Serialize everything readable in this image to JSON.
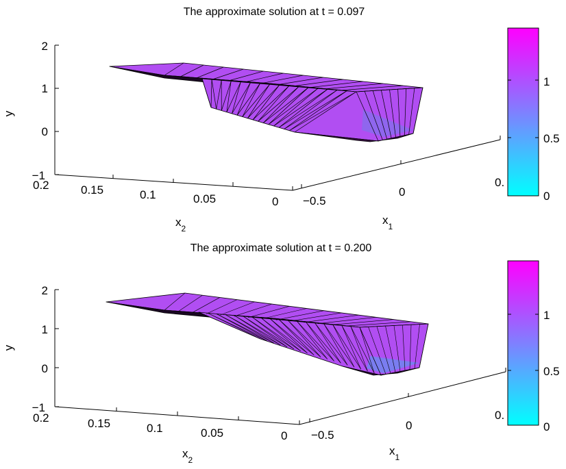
{
  "chart_data": [
    {
      "type": "surface",
      "title": "The approximate solution  at   t = 0.097",
      "zlabel": "y",
      "xlabel": "x",
      "xlabel_sub": "2",
      "ylabel": "x",
      "ylabel_sub": "1",
      "x2_ticks": [
        "0.2",
        "0.15",
        "0.1",
        "0.05",
        "0"
      ],
      "x2_range": [
        0,
        0.2
      ],
      "x1_ticks": [
        "−0.5",
        "0",
        "0."
      ],
      "z_ticks": [
        "−1",
        "0",
        "1",
        "2"
      ],
      "z_range": [
        -1,
        2
      ],
      "colorbar": {
        "ticks": [
          "0",
          "0.5",
          "1"
        ],
        "range": [
          0,
          1.45
        ],
        "colormap": "cool"
      },
      "surface_color": "#b14ef2",
      "front_profile": [
        {
          "x2": 0.2,
          "y": 1.45
        },
        {
          "x2": 0.14,
          "y": 1.35
        },
        {
          "x2": 0.095,
          "y": 1.3
        },
        {
          "x2": 0.094,
          "y": 0.5
        },
        {
          "x2": 0.03,
          "y": 0.5
        },
        {
          "x2": 0.0,
          "y": 0.05
        }
      ]
    },
    {
      "type": "surface",
      "title": "The approximate solution  at   t = 0.200",
      "zlabel": "y",
      "xlabel": "x",
      "xlabel_sub": "2",
      "ylabel": "x",
      "ylabel_sub": "1",
      "x2_ticks": [
        "0.2",
        "0.15",
        "0.1",
        "0.05",
        "0"
      ],
      "x2_range": [
        0,
        0.2
      ],
      "x1_ticks": [
        "−0.5",
        "0",
        "0."
      ],
      "z_ticks": [
        "−1",
        "0",
        "1",
        "2"
      ],
      "z_range": [
        -1,
        2
      ],
      "colorbar": {
        "ticks": [
          "0",
          "0.5",
          "1"
        ],
        "range": [
          0,
          1.45
        ],
        "colormap": "cool"
      },
      "surface_color": "#b14ef2",
      "front_profile": [
        {
          "x2": 0.2,
          "y": 1.45
        },
        {
          "x2": 0.14,
          "y": 1.3
        },
        {
          "x2": 0.1,
          "y": 1.1
        },
        {
          "x2": 0.06,
          "y": 0.6
        },
        {
          "x2": 0.03,
          "y": 0.1
        },
        {
          "x2": 0.0,
          "y": 0.05
        }
      ]
    }
  ]
}
